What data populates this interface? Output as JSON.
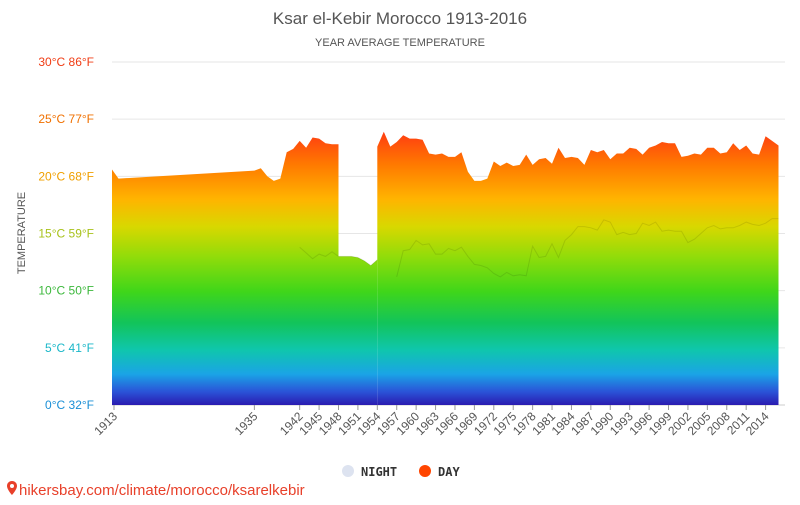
{
  "chart_data": {
    "type": "area",
    "title": "Ksar el-Kebir Morocco 1913-2016",
    "subtitle": "YEAR AVERAGE TEMPERATURE",
    "ylabel": "TEMPERATURE",
    "xlabel": "",
    "ylim": [
      0,
      30
    ],
    "grid": true,
    "legend_position": "bottom",
    "y_ticks": [
      {
        "value": 0,
        "label": "0°C 32°F",
        "color": "#1a8fd6"
      },
      {
        "value": 5,
        "label": "5°C 41°F",
        "color": "#1ab7c8"
      },
      {
        "value": 10,
        "label": "10°C 50°F",
        "color": "#3cb83c"
      },
      {
        "value": 15,
        "label": "15°C 59°F",
        "color": "#a8c21a"
      },
      {
        "value": 20,
        "label": "20°C 68°F",
        "color": "#f0a000"
      },
      {
        "value": 25,
        "label": "25°C 77°F",
        "color": "#f07000"
      },
      {
        "value": 30,
        "label": "30°C 86°F",
        "color": "#f03c14"
      }
    ],
    "x_tick_labels": [
      "1913",
      "1935",
      "1942",
      "1945",
      "1948",
      "1951",
      "1954",
      "1957",
      "1960",
      "1963",
      "1966",
      "1969",
      "1972",
      "1975",
      "1978",
      "1981",
      "1984",
      "1987",
      "1990",
      "1993",
      "1996",
      "1999",
      "2002",
      "2005",
      "2008",
      "2011",
      "2014"
    ],
    "series": [
      {
        "name": "NIGHT",
        "legend_color": "#dde3f0",
        "x": [
          "1913",
          "1914",
          "1935",
          "1936",
          "1937",
          "1938",
          "1939",
          "1940",
          "1941",
          "1942",
          "1943",
          "1944",
          "1945",
          "1946",
          "1947",
          "1948",
          "1949",
          "1950",
          "1951",
          "1952",
          "1953",
          "1954",
          "1955",
          "1956",
          "1957",
          "1958",
          "1959",
          "1960",
          "1961",
          "1962",
          "1963",
          "1964",
          "1965",
          "1966",
          "1967",
          "1968",
          "1969",
          "1970",
          "1971",
          "1972",
          "1973",
          "1974",
          "1975",
          "1976",
          "1977",
          "1978",
          "1979",
          "1980",
          "1981",
          "1982",
          "1983",
          "1984",
          "1985",
          "1986",
          "1987",
          "1988",
          "1989",
          "1990",
          "1991",
          "1992",
          "1993",
          "1994",
          "1995",
          "1996",
          "1997",
          "1998",
          "1999",
          "2000",
          "2001",
          "2002",
          "2003",
          "2004",
          "2005",
          "2006",
          "2007",
          "2008",
          "2009",
          "2010",
          "2011",
          "2012",
          "2013",
          "2014",
          "2015",
          "2016"
        ],
        "values": [
          null,
          null,
          null,
          null,
          null,
          null,
          null,
          null,
          null,
          13.8,
          13.3,
          12.8,
          13.2,
          13.0,
          13.4,
          13.0,
          13.0,
          13.0,
          12.9,
          12.6,
          12.2,
          12.7,
          null,
          null,
          11.2,
          13.5,
          13.6,
          14.4,
          14.0,
          14.1,
          13.2,
          13.2,
          13.7,
          13.5,
          13.8,
          13.0,
          12.3,
          12.2,
          12.0,
          11.5,
          11.2,
          11.6,
          11.3,
          11.4,
          11.3,
          13.9,
          12.9,
          13.0,
          14.1,
          12.9,
          14.4,
          14.9,
          15.6,
          15.6,
          15.5,
          15.3,
          16.2,
          16.0,
          14.9,
          15.1,
          14.9,
          15.0,
          15.9,
          15.7,
          16.0,
          15.2,
          15.3,
          15.2,
          15.2,
          14.2,
          14.5,
          15.0,
          15.5,
          15.7,
          15.4,
          15.5,
          15.5,
          15.7,
          16.0,
          15.8,
          15.7,
          15.9,
          16.3,
          16.3
        ]
      },
      {
        "name": "DAY",
        "legend_color": "#ff4500",
        "x": [
          "1913",
          "1914",
          "1935",
          "1936",
          "1937",
          "1938",
          "1939",
          "1940",
          "1941",
          "1942",
          "1943",
          "1944",
          "1945",
          "1946",
          "1947",
          "1948",
          "1949",
          "1950",
          "1951",
          "1952",
          "1953",
          "1954",
          "1955",
          "1956",
          "1957",
          "1958",
          "1959",
          "1960",
          "1961",
          "1962",
          "1963",
          "1964",
          "1965",
          "1966",
          "1967",
          "1968",
          "1969",
          "1970",
          "1971",
          "1972",
          "1973",
          "1974",
          "1975",
          "1976",
          "1977",
          "1978",
          "1979",
          "1980",
          "1981",
          "1982",
          "1983",
          "1984",
          "1985",
          "1986",
          "1987",
          "1988",
          "1989",
          "1990",
          "1991",
          "1992",
          "1993",
          "1994",
          "1995",
          "1996",
          "1997",
          "1998",
          "1999",
          "2000",
          "2001",
          "2002",
          "2003",
          "2004",
          "2005",
          "2006",
          "2007",
          "2008",
          "2009",
          "2010",
          "2011",
          "2012",
          "2013",
          "2014",
          "2015",
          "2016"
        ],
        "values": [
          20.6,
          19.8,
          20.5,
          20.7,
          20.0,
          19.6,
          19.8,
          22.1,
          22.4,
          23.1,
          22.5,
          23.4,
          23.3,
          22.9,
          22.8,
          22.8,
          null,
          null,
          null,
          null,
          null,
          22.6,
          23.9,
          22.6,
          23.0,
          23.6,
          23.3,
          23.3,
          23.2,
          22.0,
          21.9,
          22.0,
          21.7,
          21.7,
          22.1,
          20.4,
          19.6,
          19.6,
          19.8,
          21.3,
          20.9,
          21.2,
          20.9,
          21.0,
          21.9,
          21.0,
          21.5,
          21.6,
          21.1,
          22.5,
          21.6,
          21.7,
          21.6,
          21.0,
          22.3,
          22.1,
          22.3,
          21.5,
          22.0,
          22.0,
          22.5,
          22.4,
          21.9,
          22.5,
          22.7,
          23.0,
          22.9,
          22.9,
          21.7,
          21.8,
          22.0,
          21.9,
          22.5,
          22.5,
          22.0,
          22.1,
          22.9,
          22.3,
          22.7,
          22.0,
          21.9,
          23.5,
          23.1,
          22.7
        ]
      }
    ]
  },
  "footer": {
    "watermark": "hikersbay.com/climate/morocco/ksarelkebir",
    "pin_icon": "map-pin-icon",
    "pin_color": "#e8402a",
    "text_color": "#e8402a"
  }
}
